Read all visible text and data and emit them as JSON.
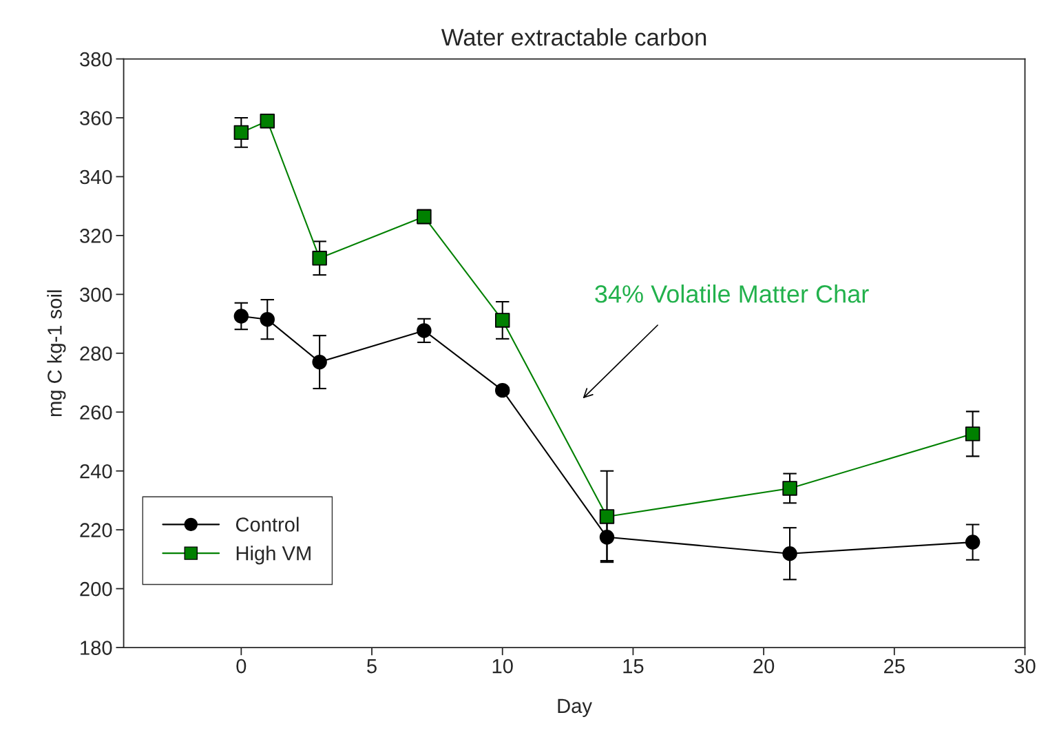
{
  "chart_data": {
    "type": "line",
    "title": "Water extractable carbon",
    "xlabel": "Day",
    "ylabel": "mg C kg-1 soil",
    "x": [
      0,
      1,
      3,
      7,
      10,
      14,
      21,
      28
    ],
    "series": [
      {
        "name": "Control",
        "color": "#000000",
        "marker": "circle",
        "values": [
          292.6,
          291.5,
          277,
          287.7,
          267.4,
          217.5,
          211.9,
          215.8
        ],
        "errors": [
          4.5,
          6.7,
          9,
          4,
          1,
          8,
          8.8,
          6
        ]
      },
      {
        "name": "High VM",
        "color": "#008000",
        "marker": "square",
        "values": [
          355,
          358.9,
          312.3,
          326.4,
          291.2,
          224.5,
          234.1,
          252.6
        ],
        "errors": [
          5,
          2,
          5.7,
          2.3,
          6.3,
          15.5,
          5,
          7.6
        ]
      }
    ],
    "annotations": [
      "34% Volatile Matter Char"
    ],
    "xlim": [
      -4.5,
      30
    ],
    "xticks": [
      0,
      5,
      10,
      15,
      20,
      25,
      30
    ],
    "ylim": [
      180,
      380
    ],
    "yticks": [
      180,
      200,
      220,
      240,
      260,
      280,
      300,
      320,
      340,
      360,
      380
    ],
    "grid": false,
    "legend": "bottom left",
    "line_style": "solid"
  }
}
